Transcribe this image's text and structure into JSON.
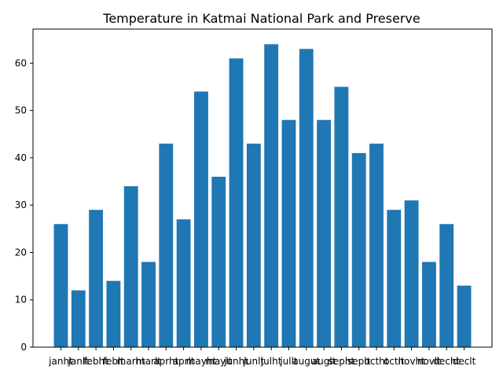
{
  "chart_data": {
    "type": "bar",
    "title": "Temperature in Katmai National Park and Preserve",
    "xlabel": "",
    "ylabel": "",
    "categories": [
      "janht",
      "janlt",
      "febht",
      "feblt",
      "marht",
      "marlt",
      "aprht",
      "aprlt",
      "mayht",
      "maylt",
      "junht",
      "junlt",
      "julht",
      "jullt",
      "augut",
      "auglt",
      "sepht",
      "seplt",
      "octht",
      "octlt",
      "novht",
      "novlt",
      "decht",
      "declt"
    ],
    "values": [
      26,
      12,
      29,
      14,
      34,
      18,
      43,
      27,
      54,
      36,
      61,
      43,
      64,
      48,
      63,
      48,
      55,
      41,
      43,
      29,
      31,
      18,
      26,
      13
    ],
    "ylim": [
      0,
      67.2
    ],
    "yticks": [
      0,
      10,
      20,
      30,
      40,
      50,
      60
    ],
    "grid": false,
    "bar_color": "#1f77b4"
  }
}
